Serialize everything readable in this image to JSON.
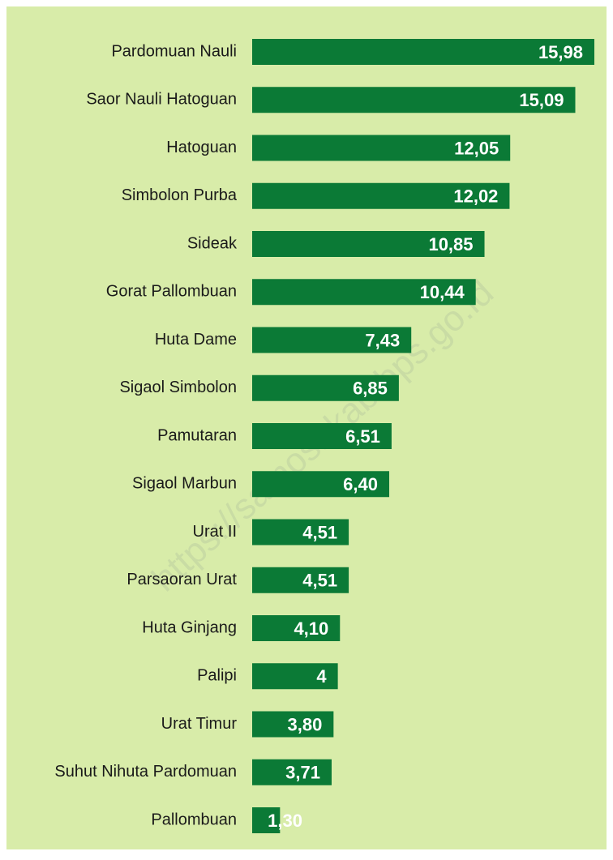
{
  "chart_data": {
    "type": "bar",
    "orientation": "horizontal",
    "color": "#0b7a36",
    "categories": [
      "Pardomuan Nauli",
      "Saor Nauli Hatoguan",
      "Hatoguan",
      "Simbolon Purba",
      "Sideak",
      "Gorat Pallombuan",
      "Huta Dame",
      "Sigaol Simbolon",
      "Pamutaran",
      "Sigaol Marbun",
      "Urat II",
      "Parsaoran Urat",
      "Huta Ginjang",
      "Palipi",
      "Urat Timur",
      "Suhut Nihuta Pardomuan",
      "Pallombuan"
    ],
    "values": [
      15.98,
      15.09,
      12.05,
      12.02,
      10.85,
      10.44,
      7.43,
      6.85,
      6.51,
      6.4,
      4.51,
      4.51,
      4.1,
      4,
      3.8,
      3.71,
      1.3
    ],
    "value_labels": [
      "15,98",
      "15,09",
      "12,05",
      "12,02",
      "10,85",
      "10,44",
      "7,43",
      "6,85",
      "6,51",
      "6,40",
      "4,51",
      "4,51",
      "4,10",
      "4",
      "3,80",
      "3,71",
      "1,30"
    ],
    "watermark": "https://samosirkab.bps.go.id"
  }
}
